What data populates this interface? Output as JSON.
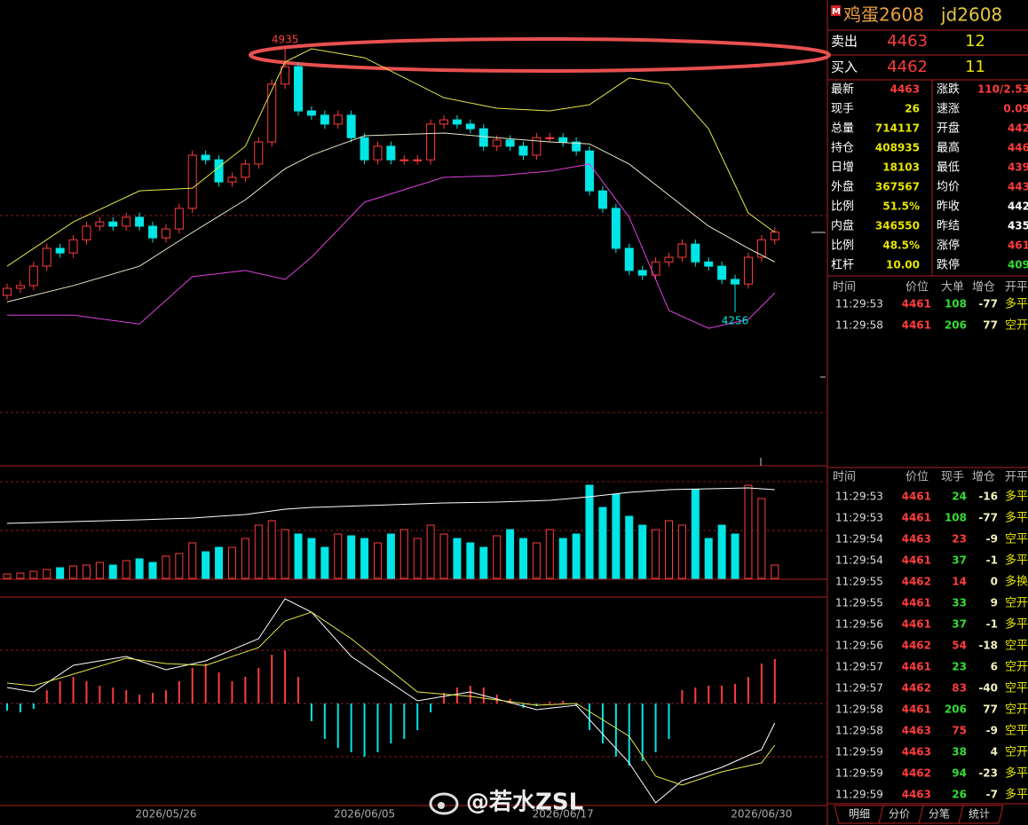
{
  "header": {
    "title": "鸡蛋2608",
    "code": "jd2608"
  },
  "quote": [
    {
      "label": "卖出",
      "price": 4463,
      "volume": 12
    },
    {
      "label": "买入",
      "price": 4462,
      "volume": 11
    }
  ],
  "stats": {
    "left": [
      {
        "label": "最新",
        "value": "4463",
        "color": "#ff3c3c"
      },
      {
        "label": "现手",
        "value": "26",
        "color": "#e6e600"
      },
      {
        "label": "总量",
        "value": "714117",
        "color": "#e6e600"
      },
      {
        "label": "持仓",
        "value": "408935",
        "color": "#e6e600"
      },
      {
        "label": "日增",
        "value": "18103",
        "color": "#e6e600"
      },
      {
        "label": "外盘",
        "value": "367567",
        "color": "#e6e600"
      },
      {
        "label": "比例",
        "value": "51.5%",
        "color": "#e6e600"
      },
      {
        "label": "内盘",
        "value": "346550",
        "color": "#e6e600"
      },
      {
        "label": "比例",
        "value": "48.5%",
        "color": "#e6e600"
      },
      {
        "label": "杠杆",
        "value": "10.00",
        "color": "#e6e600"
      }
    ],
    "right": [
      {
        "label": "涨跌",
        "value": "110/2.53",
        "color": "#ff3c3c"
      },
      {
        "label": "速涨",
        "value": "0.09",
        "color": "#ff3c3c"
      },
      {
        "label": "开盘",
        "value": "442",
        "color": "#ff3c3c"
      },
      {
        "label": "最高",
        "value": "446",
        "color": "#ff3c3c"
      },
      {
        "label": "最低",
        "value": "439",
        "color": "#ff3c3c"
      },
      {
        "label": "均价",
        "value": "443",
        "color": "#ff3c3c"
      },
      {
        "label": "昨收",
        "value": "442",
        "color": "#ffffff"
      },
      {
        "label": "昨结",
        "value": "435",
        "color": "#ffffff"
      },
      {
        "label": "涨停",
        "value": "461",
        "color": "#ff3c3c"
      },
      {
        "label": "跌停",
        "value": "409",
        "color": "#33dd33"
      }
    ]
  },
  "big_trades": {
    "headers": [
      "时间",
      "价位",
      "大单",
      "增仓",
      "开平"
    ],
    "rows": [
      {
        "time": "11:29:53",
        "price": 4461,
        "volume": 108,
        "change": -77,
        "kind": "多平",
        "vol_color": "#33dd33"
      },
      {
        "time": "11:29:58",
        "price": 4461,
        "volume": 206,
        "change": 77,
        "kind": "空开",
        "vol_color": "#33dd33"
      }
    ]
  },
  "trades": {
    "headers": [
      "时间",
      "价位",
      "现手",
      "增仓",
      "开平"
    ],
    "rows": [
      {
        "time": "11:29:53",
        "price": 4461,
        "volume": 24,
        "change": -16,
        "kind": "多平",
        "vol_color": "#33dd33"
      },
      {
        "time": "11:29:53",
        "price": 4461,
        "volume": 108,
        "change": -77,
        "kind": "多平",
        "vol_color": "#33dd33"
      },
      {
        "time": "11:29:54",
        "price": 4463,
        "volume": 23,
        "change": -9,
        "kind": "空平",
        "vol_color": "#ff3c3c"
      },
      {
        "time": "11:29:54",
        "price": 4461,
        "volume": 37,
        "change": -1,
        "kind": "多平",
        "vol_color": "#33dd33"
      },
      {
        "time": "11:29:55",
        "price": 4462,
        "volume": 14,
        "change": 0,
        "kind": "多换",
        "vol_color": "#ff3c3c"
      },
      {
        "time": "11:29:55",
        "price": 4461,
        "volume": 33,
        "change": 9,
        "kind": "空开",
        "vol_color": "#33dd33"
      },
      {
        "time": "11:29:56",
        "price": 4461,
        "volume": 37,
        "change": -1,
        "kind": "多平",
        "vol_color": "#33dd33"
      },
      {
        "time": "11:29:56",
        "price": 4462,
        "volume": 54,
        "change": -18,
        "kind": "空平",
        "vol_color": "#ff3c3c"
      },
      {
        "time": "11:29:57",
        "price": 4461,
        "volume": 23,
        "change": 6,
        "kind": "空开",
        "vol_color": "#33dd33"
      },
      {
        "time": "11:29:57",
        "price": 4462,
        "volume": 83,
        "change": -40,
        "kind": "空平",
        "vol_color": "#ff3c3c"
      },
      {
        "time": "11:29:58",
        "price": 4461,
        "volume": 206,
        "change": 77,
        "kind": "空开",
        "vol_color": "#33dd33"
      },
      {
        "time": "11:29:58",
        "price": 4463,
        "volume": 75,
        "change": -9,
        "kind": "空平",
        "vol_color": "#ff3c3c"
      },
      {
        "time": "11:29:59",
        "price": 4463,
        "volume": 38,
        "change": 4,
        "kind": "空开",
        "vol_color": "#33dd33"
      },
      {
        "time": "11:29:59",
        "price": 4462,
        "volume": 94,
        "change": -23,
        "kind": "多平",
        "vol_color": "#33dd33"
      },
      {
        "time": "11:29:59",
        "price": 4463,
        "volume": 26,
        "change": -7,
        "kind": "多平",
        "vol_color": "#33dd33"
      }
    ]
  },
  "tabs": [
    "明细",
    "分价",
    "分笔",
    "统计"
  ],
  "watermark": "@若水ZSL",
  "chart_data": [
    {
      "type": "candlestick",
      "up_color": "#ff3c3c",
      "down_color": "#00e5e5",
      "ylim": [
        3861,
        5015
      ],
      "open": [
        4300,
        4318,
        4325,
        4375,
        4421,
        4409,
        4443,
        4478,
        4489,
        4478,
        4501,
        4478,
        4448,
        4471,
        4524,
        4661,
        4649,
        4592,
        4604,
        4638,
        4695,
        4844,
        4889,
        4775,
        4764,
        4741,
        4764,
        4706,
        4649,
        4684,
        4649,
        4649,
        4649,
        4741,
        4752,
        4741,
        4729,
        4684,
        4700,
        4684,
        4661,
        4706,
        4706,
        4695,
        4672,
        4569,
        4524,
        4421,
        4364,
        4352,
        4386,
        4398,
        4432,
        4386,
        4375,
        4341,
        4329,
        4398,
        4443
      ],
      "high": [
        4330,
        4337,
        4387,
        4433,
        4433,
        4455,
        4490,
        4501,
        4501,
        4513,
        4513,
        4490,
        4483,
        4536,
        4673,
        4673,
        4661,
        4616,
        4650,
        4707,
        4856,
        4935,
        4901,
        4787,
        4776,
        4776,
        4776,
        4718,
        4696,
        4696,
        4661,
        4661,
        4753,
        4764,
        4764,
        4753,
        4741,
        4712,
        4712,
        4696,
        4718,
        4718,
        4718,
        4707,
        4684,
        4581,
        4536,
        4433,
        4376,
        4398,
        4410,
        4444,
        4444,
        4398,
        4387,
        4353,
        4410,
        4455,
        4475
      ],
      "low": [
        4288,
        4306,
        4313,
        4363,
        4397,
        4397,
        4431,
        4466,
        4466,
        4466,
        4466,
        4436,
        4436,
        4459,
        4512,
        4637,
        4580,
        4580,
        4592,
        4626,
        4683,
        4832,
        4763,
        4752,
        4729,
        4729,
        4694,
        4637,
        4637,
        4637,
        4637,
        4637,
        4637,
        4729,
        4729,
        4717,
        4672,
        4672,
        4672,
        4649,
        4649,
        4694,
        4683,
        4660,
        4557,
        4512,
        4409,
        4352,
        4340,
        4340,
        4374,
        4386,
        4374,
        4363,
        4329,
        4256,
        4317,
        4386,
        4431
      ],
      "close": [
        4318,
        4325,
        4375,
        4421,
        4409,
        4443,
        4478,
        4489,
        4478,
        4501,
        4478,
        4448,
        4471,
        4524,
        4661,
        4649,
        4592,
        4604,
        4638,
        4695,
        4844,
        4889,
        4775,
        4764,
        4741,
        4764,
        4706,
        4649,
        4684,
        4649,
        4649,
        4649,
        4741,
        4752,
        4741,
        4729,
        4684,
        4700,
        4684,
        4661,
        4706,
        4706,
        4695,
        4672,
        4569,
        4524,
        4421,
        4364,
        4352,
        4386,
        4398,
        4432,
        4386,
        4375,
        4341,
        4329,
        4398,
        4443,
        4463
      ],
      "bands": {
        "at": [
          0,
          5,
          10,
          14,
          18,
          21,
          23,
          27,
          33,
          37,
          41,
          44,
          47,
          50,
          53,
          56,
          58
        ],
        "upper": [
          4375,
          4489,
          4569,
          4576,
          4684,
          4901,
          4935,
          4912,
          4809,
          4782,
          4775,
          4791,
          4860,
          4844,
          4729,
          4512,
          4462
        ],
        "mid": [
          4283,
          4325,
          4375,
          4462,
          4546,
          4626,
          4661,
          4711,
          4718,
          4706,
          4695,
          4690,
          4638,
          4558,
          4478,
          4421,
          4386
        ],
        "lower": [
          4249,
          4249,
          4226,
          4348,
          4364,
          4341,
          4398,
          4540,
          4604,
          4608,
          4620,
          4638,
          4501,
          4261,
          4215,
          4238,
          4306
        ],
        "colors": [
          "#e6e64a",
          "#e8e8c8",
          "#e040e0"
        ]
      },
      "annotations": [
        {
          "value": 4935,
          "at": 21,
          "color": "#ff3c3c"
        },
        {
          "value": 4256,
          "at": 55,
          "color": "#00e5e5"
        }
      ],
      "x_labels": [
        {
          "label": "2026/05/26",
          "at": 12
        },
        {
          "label": "2026/06/05",
          "at": 27
        },
        {
          "label": "2026/06/17",
          "at": 42
        },
        {
          "label": "2026/06/30",
          "at": 57
        }
      ]
    },
    {
      "type": "bar",
      "ylim": [
        0,
        112
      ],
      "values": [
        5,
        6,
        8,
        10,
        12,
        14,
        15,
        18,
        15,
        20,
        22,
        18,
        25,
        28,
        40,
        30,
        35,
        35,
        45,
        60,
        65,
        55,
        50,
        45,
        35,
        50,
        48,
        45,
        40,
        50,
        55,
        45,
        60,
        50,
        45,
        40,
        35,
        48,
        55,
        45,
        40,
        55,
        45,
        50,
        105,
        80,
        95,
        70,
        60,
        55,
        65,
        60,
        100,
        45,
        60,
        50,
        105,
        90,
        15
      ],
      "line": {
        "at": [
          0,
          5,
          10,
          14,
          18,
          21,
          23,
          27,
          33,
          37,
          41,
          44,
          47,
          50,
          53,
          56,
          58
        ],
        "values": [
          62,
          64,
          66,
          68,
          72,
          78,
          80,
          82,
          85,
          86,
          88,
          92,
          97,
          100,
          101,
          102,
          100
        ],
        "color": "#ffffff"
      }
    },
    {
      "type": "macd",
      "ylim": [
        -115,
        120
      ],
      "hist": [
        -8,
        -10,
        -6,
        15,
        25,
        30,
        25,
        20,
        18,
        15,
        10,
        12,
        15,
        25,
        40,
        45,
        35,
        25,
        30,
        40,
        55,
        60,
        30,
        -20,
        -40,
        -50,
        -55,
        -60,
        -55,
        -45,
        -40,
        -30,
        -10,
        12,
        18,
        20,
        18,
        10,
        5,
        -5,
        -3,
        2,
        3,
        -2,
        -30,
        -45,
        -60,
        -70,
        -65,
        -55,
        -40,
        15,
        18,
        20,
        20,
        22,
        30,
        45,
        50
      ],
      "at": [
        0,
        2,
        5,
        9,
        12,
        15,
        19,
        21,
        23,
        26,
        31,
        35,
        40,
        43,
        47,
        49,
        51,
        54,
        57,
        58
      ],
      "dif": [
        18,
        13,
        43,
        53,
        38,
        48,
        73,
        118,
        103,
        53,
        3,
        13,
        -7,
        -2,
        -67,
        -112,
        -87,
        -72,
        -52,
        -22
      ],
      "dea": [
        23,
        20,
        33,
        51,
        45,
        43,
        63,
        93,
        103,
        73,
        13,
        8,
        -2,
        0,
        -37,
        -82,
        -92,
        -77,
        -67,
        -47
      ],
      "colors": [
        "#ffffff",
        "#e6e64a"
      ]
    }
  ]
}
